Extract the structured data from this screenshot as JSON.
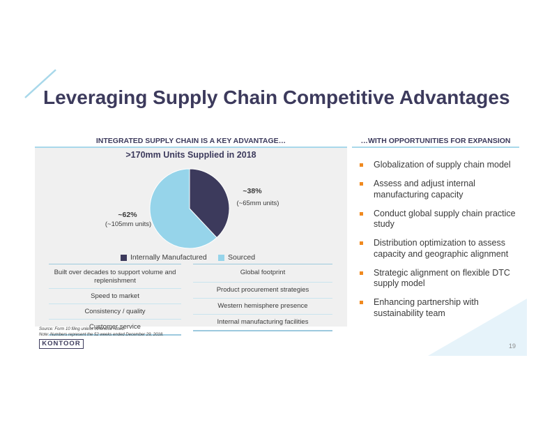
{
  "title": "Leveraging Supply Chain Competitive Advantages",
  "left_section": {
    "heading": "INTEGRATED SUPPLY CHAIN IS A KEY ADVANTAGE…",
    "panel_title": ">170mm Units Supplied in 2018",
    "pie": {
      "internal": {
        "pct_label": "~38%",
        "units_label": "(~65mm units)",
        "value": 38,
        "color": "#3c3a5c"
      },
      "sourced": {
        "pct_label": "~62%",
        "units_label": "(~105mm units)",
        "value": 62,
        "color": "#96d4ea"
      }
    },
    "legend": {
      "internal": "Internally Manufactured",
      "sourced": "Sourced"
    },
    "internal_list": [
      "Built over decades to support volume and replenishment",
      "Speed to market",
      "Consistency / quality",
      "Customer service"
    ],
    "sourced_list": [
      "Global footprint",
      "Product procurement strategies",
      "Western hemisphere presence",
      "Internal manufacturing facilities"
    ]
  },
  "right_section": {
    "heading": "…WITH OPPORTUNITIES FOR EXPANSION",
    "bullets": [
      "Globalization of supply chain model",
      "Assess and adjust internal manufacturing capacity",
      "Conduct global supply chain practice study",
      "Distribution optimization to assess capacity and geographic alignment",
      "Strategic alignment on flexible DTC supply model",
      "Enhancing partnership with sustainability team"
    ]
  },
  "footnotes": {
    "source": "Source: Form 10 filing unless otherwise noted.",
    "note": "Note: Numbers represent the 52 weeks ended December 29, 2018."
  },
  "logo_text": "KONTOOR",
  "page_number": "19",
  "colors": {
    "title": "#3c3a5c",
    "accent_blue": "#96d4ea",
    "bullet_orange": "#f08a20"
  }
}
